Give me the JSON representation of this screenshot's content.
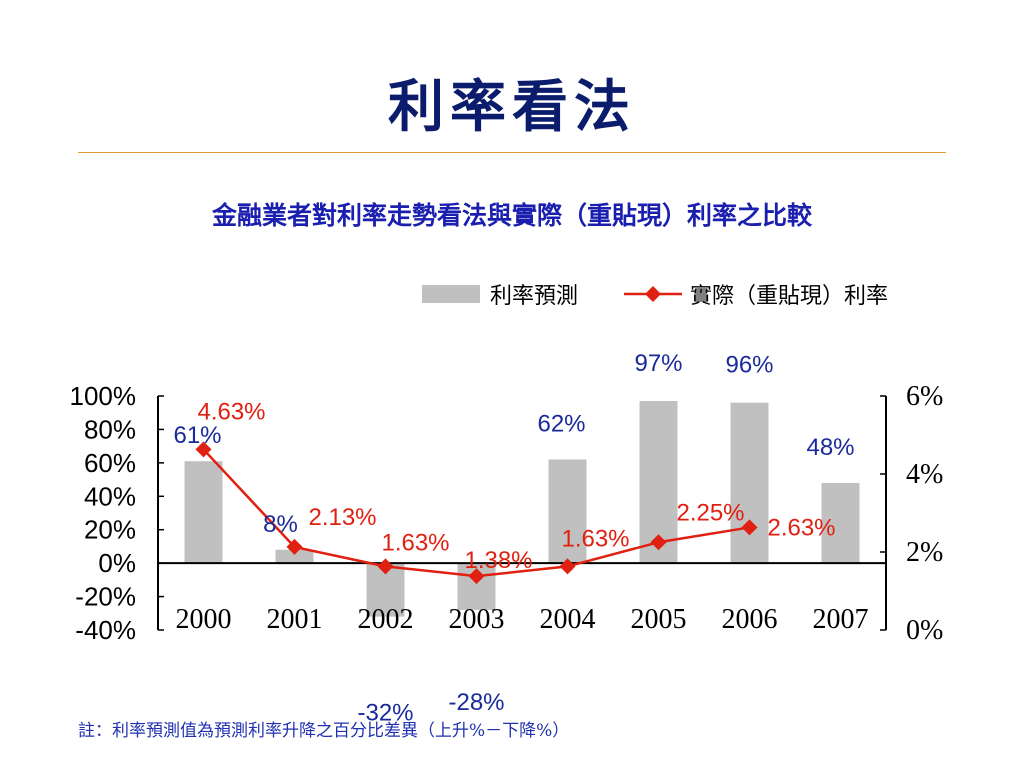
{
  "slide": {
    "title": "利率看法",
    "footnote": "註：利率預測值為預測利率升降之百分比差異（上升%－下降%）"
  },
  "colors": {
    "title": "#0c1c6c",
    "rule": "#e59a3a",
    "bar": "#c0c0c0",
    "line": "#e02010",
    "bar_label": "#1a2a9a",
    "line_label": "#e02010"
  },
  "chart_data": {
    "type": "bar+line",
    "title": "金融業者對利率走勢看法與實際（重貼現）利率之比較",
    "categories": [
      "2000",
      "2001",
      "2002",
      "2003",
      "2004",
      "2005",
      "2006",
      "2007"
    ],
    "series": [
      {
        "name": "利率預測",
        "type": "bar",
        "axis": "left",
        "values": [
          61,
          8,
          -32,
          -28,
          62,
          97,
          96,
          48
        ],
        "labels": [
          "61%",
          "8%",
          "-32%",
          "-28%",
          "62%",
          "97%",
          "96%",
          "48%"
        ]
      },
      {
        "name": "實際（重貼現）利率",
        "type": "line",
        "axis": "right",
        "values": [
          4.63,
          2.13,
          1.63,
          1.38,
          1.63,
          2.25,
          2.63,
          null
        ],
        "labels": [
          "4.63%",
          "2.13%",
          "1.63%",
          "1.38%",
          "1.63%",
          "2.25%",
          "2.63%",
          ""
        ]
      }
    ],
    "y_left": {
      "ylim": [
        -40,
        100
      ],
      "ticks": [
        100,
        80,
        60,
        40,
        20,
        0,
        -20,
        -40
      ],
      "tick_labels": [
        "100%",
        "80%",
        "60%",
        "40%",
        "20%",
        "0%",
        "-20%",
        "-40%"
      ]
    },
    "y_right": {
      "ylim": [
        0,
        6
      ],
      "ticks": [
        6,
        4,
        2,
        0
      ],
      "tick_labels": [
        "6%",
        "4%",
        "2%",
        "0%"
      ]
    },
    "legend": {
      "position": "top-right",
      "entries": [
        "利率預測",
        "實際（重貼現）利率"
      ]
    },
    "grid": false
  }
}
